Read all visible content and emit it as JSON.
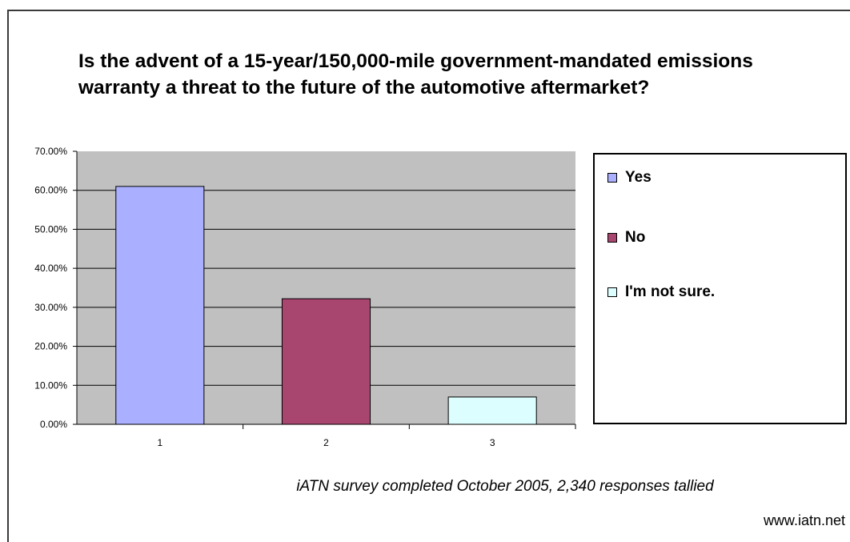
{
  "chart_data": {
    "type": "bar",
    "title": "Is the advent of a 15-year/150,000-mile government-mandated emissions warranty a threat to the future of the automotive aftermarket?",
    "categories": [
      "1",
      "2",
      "3"
    ],
    "values": [
      61.0,
      32.2,
      7.0
    ],
    "series": [
      {
        "name": "Yes",
        "value": 61.0,
        "color": "#aab0ff"
      },
      {
        "name": "No",
        "value": 32.2,
        "color": "#a84670"
      },
      {
        "name": "I'm not sure.",
        "value": 7.0,
        "color": "#ddfefe"
      }
    ],
    "ylim": [
      0,
      70
    ],
    "yticks": [
      "0.00%",
      "10.00%",
      "20.00%",
      "30.00%",
      "40.00%",
      "50.00%",
      "60.00%",
      "70.00%"
    ],
    "grid": true,
    "plot_background": "#c0c0c0",
    "legend_position": "right"
  },
  "caption": "iATN survey completed October 2005, 2,340 responses tallied",
  "source": "www.iatn.net"
}
